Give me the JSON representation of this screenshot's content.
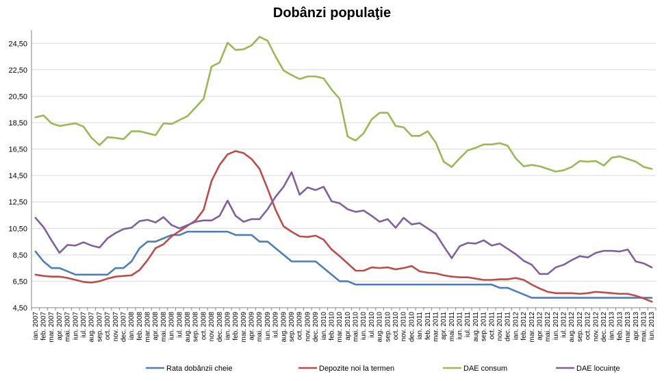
{
  "chart_data": {
    "type": "line",
    "title": "Dobânzi populaţie",
    "xlabel": "",
    "ylabel": "",
    "ylim": [
      4.5,
      25.5
    ],
    "yticks": [
      "4,50",
      "6,50",
      "8,50",
      "10,50",
      "12,50",
      "14,50",
      "16,50",
      "18,50",
      "20,50",
      "22,50",
      "24,50"
    ],
    "grid": true,
    "legend_position": "bottom",
    "categories": [
      "ian. 2007",
      "feb. 2007",
      "mar. 2007",
      "apr. 2007",
      "mai. 2007",
      "iun. 2007",
      "iul. 2007",
      "aug. 2007",
      "sep. 2007",
      "oct. 2007",
      "nov. 2007",
      "dec. 2007",
      "ian. 2008",
      "feb. 2008",
      "mar. 2008",
      "apr. 2008",
      "mai. 2008",
      "iun. 2008",
      "iul. 2008",
      "aug. 2008",
      "sep. 2008",
      "oct. 2008",
      "nov. 2008",
      "dec. 2008",
      "ian. 2009",
      "feb. 2009",
      "mar. 2009",
      "apr. 2009",
      "mai. 2009",
      "iun. 2009",
      "iul. 2009",
      "aug. 2009",
      "sep. 2009",
      "oct. 2009",
      "nov. 2009",
      "dec. 2009",
      "ian. 2010",
      "feb. 2010",
      "mar. 2010",
      "apr. 2010",
      "mai. 2010",
      "iun. 2010",
      "iul. 2010",
      "aug. 2010",
      "sep. 2010",
      "oct. 2010",
      "nov. 2010",
      "dec. 2010",
      "ian. 2011",
      "feb. 2011",
      "mar. 2011",
      "apr. 2011",
      "mai. 2011",
      "iun. 2011",
      "iul. 2011",
      "aug. 2011",
      "sep. 2011",
      "oct. 2011",
      "nov. 2011",
      "dec. 2011",
      "ian. 2012",
      "feb. 2012",
      "mar. 2012",
      "apr. 2012",
      "mai. 2012",
      "iun. 2012",
      "iul. 2012",
      "aug. 2012",
      "sep. 2012",
      "oct. 2012",
      "nov. 2012",
      "dec. 2012",
      "ian. 2013",
      "feb. 2013",
      "mar. 2013",
      "apr. 2013",
      "mai. 2013",
      "iun. 2013"
    ],
    "series": [
      {
        "name": "Rata dobânzii cheie",
        "color": "#4a7ebb",
        "values": [
          8.75,
          8.0,
          7.5,
          7.5,
          7.25,
          7.0,
          7.0,
          7.0,
          7.0,
          7.0,
          7.5,
          7.5,
          8.0,
          9.0,
          9.5,
          9.5,
          9.75,
          10.0,
          10.0,
          10.25,
          10.25,
          10.25,
          10.25,
          10.25,
          10.25,
          10.0,
          10.0,
          10.0,
          9.5,
          9.5,
          9.0,
          8.5,
          8.0,
          8.0,
          8.0,
          8.0,
          7.5,
          7.0,
          6.5,
          6.5,
          6.25,
          6.25,
          6.25,
          6.25,
          6.25,
          6.25,
          6.25,
          6.25,
          6.25,
          6.25,
          6.25,
          6.25,
          6.25,
          6.25,
          6.25,
          6.25,
          6.25,
          6.25,
          6.0,
          6.0,
          5.75,
          5.5,
          5.25,
          5.25,
          5.25,
          5.25,
          5.25,
          5.25,
          5.25,
          5.25,
          5.25,
          5.25,
          5.25,
          5.25,
          5.25,
          5.25,
          5.25,
          5.25
        ]
      },
      {
        "name": "Depozite noi la termen",
        "color": "#be4b48",
        "values": [
          7.0,
          6.9,
          6.85,
          6.85,
          6.75,
          6.6,
          6.45,
          6.4,
          6.5,
          6.7,
          6.85,
          6.9,
          6.95,
          7.35,
          8.1,
          9.0,
          9.3,
          9.9,
          10.3,
          10.7,
          11.1,
          11.9,
          14.1,
          15.3,
          16.1,
          16.35,
          16.2,
          15.75,
          15.0,
          13.5,
          11.9,
          10.65,
          10.25,
          9.9,
          9.85,
          9.95,
          9.65,
          8.9,
          8.4,
          7.85,
          7.3,
          7.3,
          7.55,
          7.5,
          7.55,
          7.4,
          7.5,
          7.65,
          7.25,
          7.15,
          7.1,
          6.95,
          6.85,
          6.8,
          6.8,
          6.7,
          6.6,
          6.6,
          6.65,
          6.65,
          6.75,
          6.6,
          6.25,
          5.95,
          5.7,
          5.6,
          5.6,
          5.6,
          5.55,
          5.6,
          5.7,
          5.65,
          5.6,
          5.55,
          5.55,
          5.4,
          5.2,
          4.95
        ]
      },
      {
        "name": "DAE consum",
        "color": "#98b954",
        "values": [
          18.9,
          19.05,
          18.45,
          18.25,
          18.35,
          18.45,
          18.2,
          17.35,
          16.8,
          17.4,
          17.35,
          17.25,
          17.85,
          17.85,
          17.7,
          17.55,
          18.45,
          18.4,
          18.7,
          19.0,
          19.65,
          20.3,
          22.75,
          23.05,
          24.55,
          24.0,
          24.05,
          24.35,
          25.0,
          24.7,
          23.5,
          22.45,
          22.1,
          21.8,
          22.0,
          22.0,
          21.85,
          21.0,
          20.3,
          17.45,
          17.15,
          17.7,
          18.75,
          19.25,
          19.25,
          18.25,
          18.15,
          17.5,
          17.5,
          17.85,
          17.0,
          15.55,
          15.15,
          15.8,
          16.4,
          16.6,
          16.85,
          16.85,
          16.95,
          16.75,
          15.8,
          15.2,
          15.3,
          15.2,
          15.0,
          14.8,
          14.9,
          15.15,
          15.6,
          15.55,
          15.6,
          15.25,
          15.85,
          15.95,
          15.75,
          15.55,
          15.15,
          15.0
        ]
      },
      {
        "name": "DAE locuinţe",
        "color": "#7d60a0",
        "values": [
          11.3,
          10.6,
          9.6,
          8.65,
          9.25,
          9.2,
          9.45,
          9.2,
          9.05,
          9.75,
          10.15,
          10.45,
          10.55,
          11.05,
          11.15,
          10.95,
          11.35,
          10.75,
          10.5,
          10.75,
          11.0,
          11.1,
          11.1,
          11.45,
          12.6,
          11.45,
          11.0,
          11.2,
          11.2,
          11.95,
          12.9,
          13.65,
          14.75,
          13.05,
          13.6,
          13.4,
          13.65,
          12.55,
          12.4,
          11.95,
          11.75,
          11.85,
          11.45,
          11.0,
          11.2,
          10.55,
          11.3,
          10.8,
          10.9,
          10.5,
          10.1,
          9.15,
          8.25,
          9.15,
          9.4,
          9.35,
          9.6,
          9.2,
          9.35,
          8.95,
          8.55,
          8.05,
          7.75,
          7.05,
          7.05,
          7.55,
          7.75,
          8.1,
          8.4,
          8.3,
          8.65,
          8.8,
          8.8,
          8.75,
          8.9,
          8.0,
          7.85,
          7.55
        ]
      }
    ]
  }
}
